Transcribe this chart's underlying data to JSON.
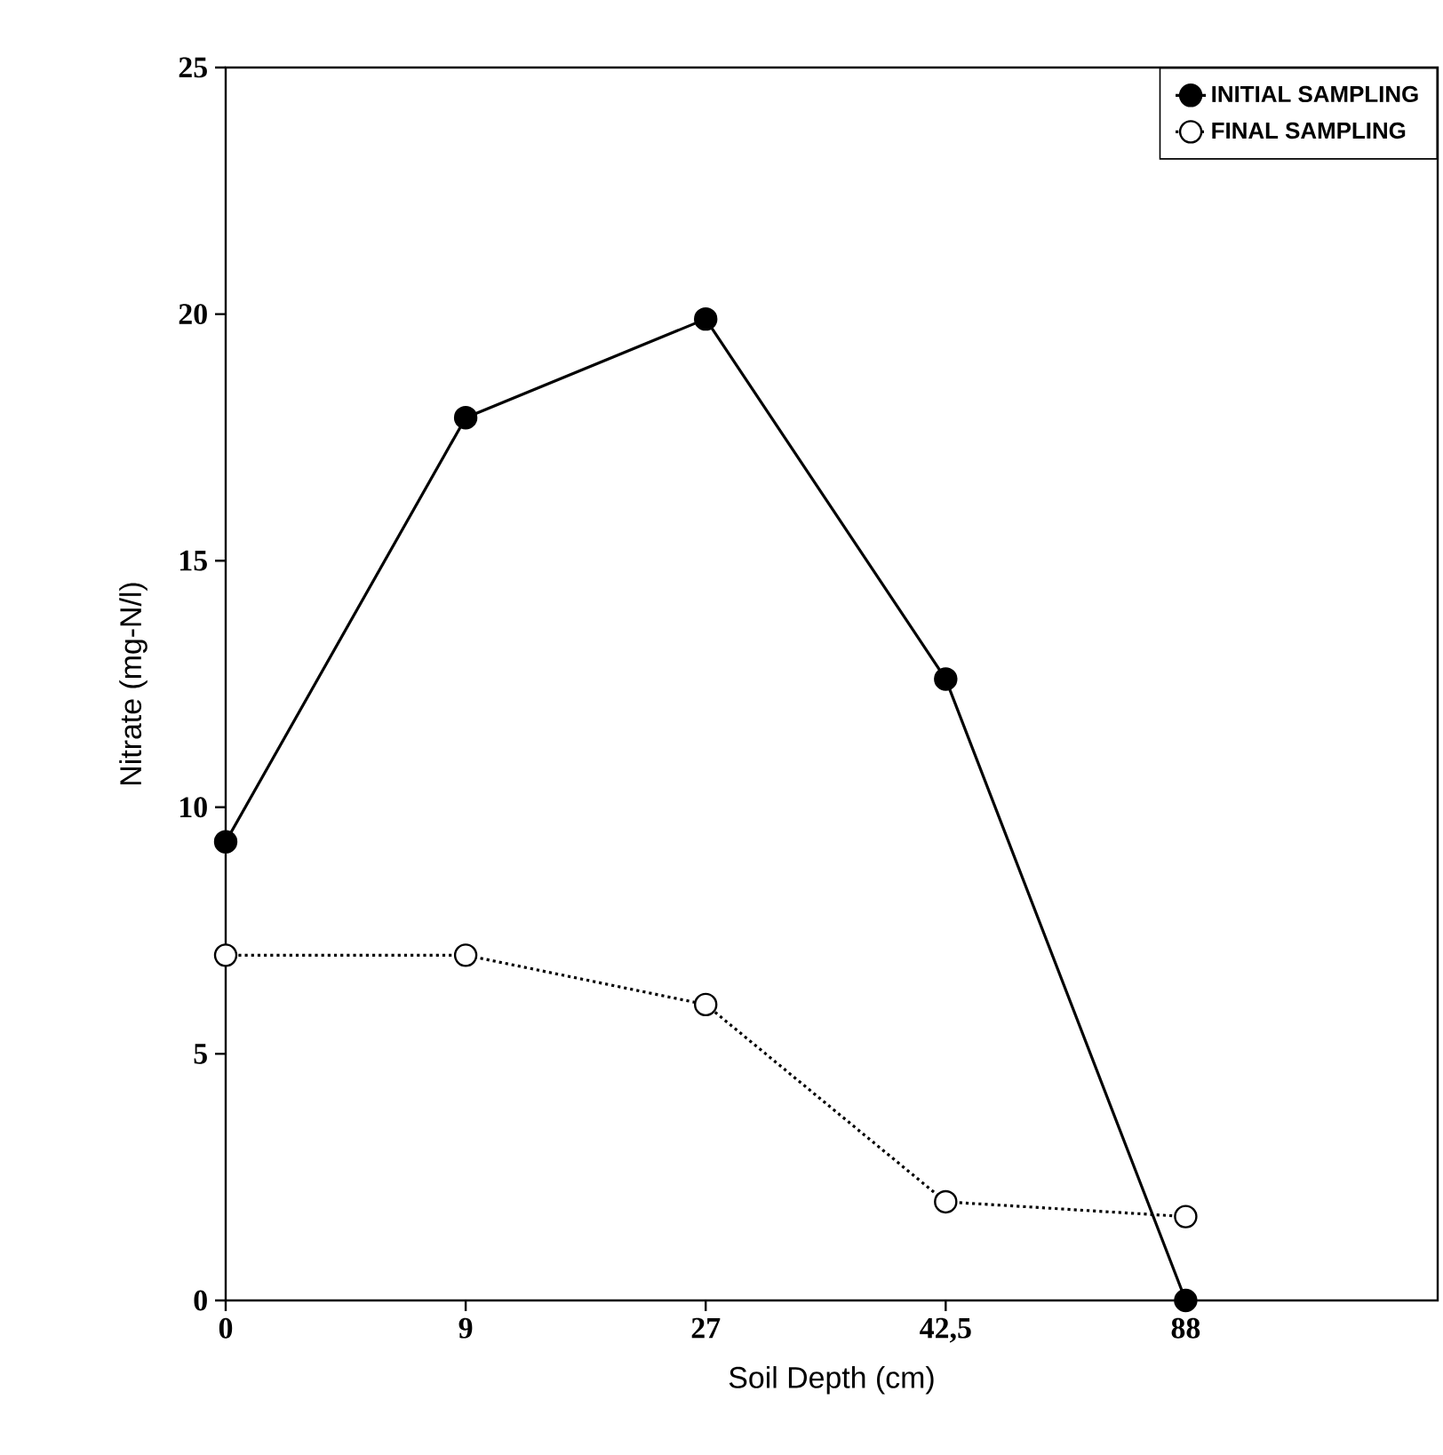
{
  "chart_data": {
    "type": "line",
    "xlabel": "Soil Depth (cm)",
    "ylabel": "Nitrate (mg-N/l)",
    "categories": [
      "0",
      "9",
      "27",
      "42,5",
      "88"
    ],
    "series": [
      {
        "name": "INITIAL SAMPLING",
        "color": "#000000",
        "line_style": "solid",
        "values": [
          9.3,
          17.9,
          19.9,
          12.6,
          0
        ]
      },
      {
        "name": "FINAL SAMPLING",
        "color": "#000000",
        "line_style": "dotted",
        "values": [
          7.0,
          7.0,
          6.0,
          2.0,
          1.7
        ]
      }
    ],
    "ylim": [
      0,
      25
    ],
    "yticks": [
      0,
      5,
      10,
      15,
      20,
      25
    ],
    "marker": "circle",
    "legend": "top right",
    "grid": false
  }
}
